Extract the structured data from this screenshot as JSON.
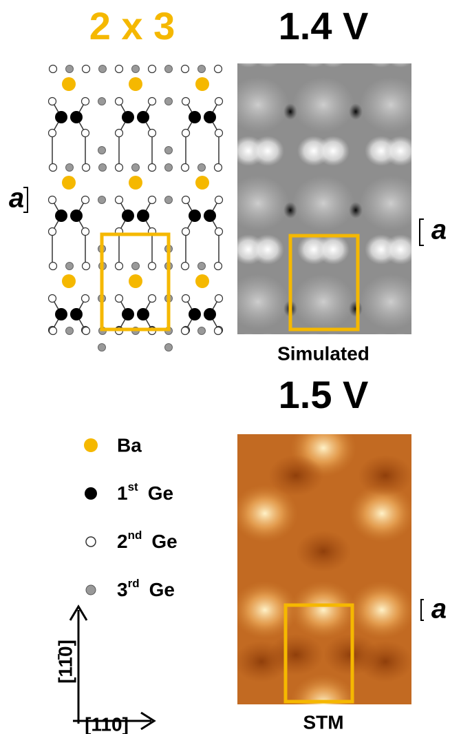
{
  "model": {
    "title": "2 x 3",
    "lattice_label": "a"
  },
  "simulated": {
    "title": "1.4 V",
    "lattice_label": "a",
    "caption": "Simulated"
  },
  "stm": {
    "title": "1.5 V",
    "lattice_label": "a",
    "caption": "STM"
  },
  "legend": [
    {
      "label": "Ba"
    },
    {
      "number": "1",
      "suffix": "st",
      "element": "Ge"
    },
    {
      "number": "2",
      "suffix": "nd",
      "element": "Ge"
    },
    {
      "number": "3",
      "suffix": "rd",
      "element": "Ge"
    }
  ],
  "axes": {
    "vertical": "[11̄0]",
    "horizontal": "[110]"
  }
}
